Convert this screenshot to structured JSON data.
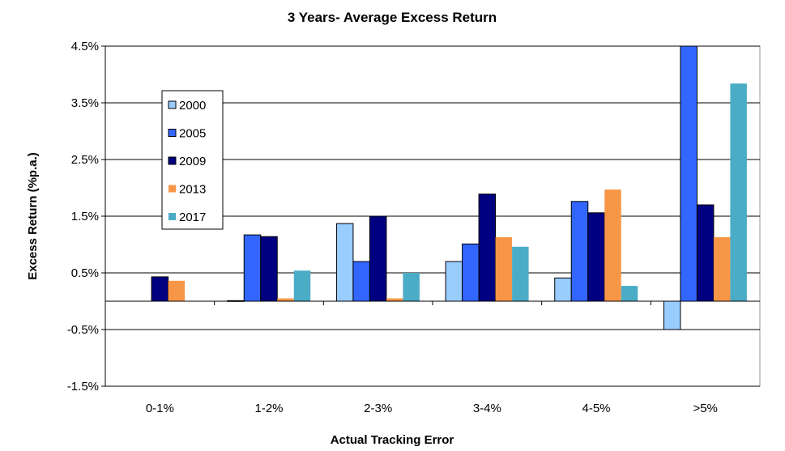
{
  "chart_data": {
    "type": "bar",
    "title": "3 Years- Average Excess Return",
    "xlabel": "Actual Tracking Error",
    "ylabel": "Excess Return (%p.a.)",
    "ylim": [
      -1.5,
      4.5
    ],
    "yticks": [
      4.5,
      3.5,
      2.5,
      1.5,
      0.5,
      -0.5,
      -1.5
    ],
    "ytick_labels": [
      "4.5%",
      "3.5%",
      "2.5%",
      "1.5%",
      "0.5%",
      "-0.5%",
      "-1.5%"
    ],
    "grid": true,
    "legend_position": "top-left",
    "categories": [
      "0-1%",
      "1-2%",
      "2-3%",
      "3-4%",
      "4-5%",
      ">5%"
    ],
    "series": [
      {
        "name": "2000",
        "color": "#99CCFF",
        "outlined": true,
        "values": [
          0,
          0.01,
          1.37,
          0.7,
          0.41,
          -0.5
        ]
      },
      {
        "name": "2005",
        "color": "#3366FF",
        "outlined": true,
        "values": [
          0,
          1.17,
          0.7,
          1.01,
          1.76,
          4.5
        ]
      },
      {
        "name": "2009",
        "color": "#000080",
        "outlined": true,
        "values": [
          0.43,
          1.14,
          1.5,
          1.89,
          1.56,
          1.7
        ]
      },
      {
        "name": "2013",
        "color": "#F79646",
        "outlined": false,
        "values": [
          0.36,
          0.05,
          0.05,
          1.13,
          1.97,
          1.13
        ]
      },
      {
        "name": "2017",
        "color": "#4BACC6",
        "outlined": false,
        "values": [
          0,
          0.54,
          0.5,
          0.96,
          0.27,
          3.84
        ]
      }
    ]
  }
}
